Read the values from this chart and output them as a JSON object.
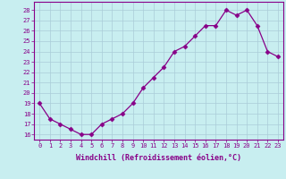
{
  "x": [
    0,
    1,
    2,
    3,
    4,
    5,
    6,
    7,
    8,
    9,
    10,
    11,
    12,
    13,
    14,
    15,
    16,
    17,
    18,
    19,
    20,
    21,
    22,
    23
  ],
  "y": [
    19.0,
    17.5,
    17.0,
    16.5,
    16.0,
    16.0,
    17.0,
    17.5,
    18.0,
    19.0,
    20.5,
    21.5,
    22.5,
    24.0,
    24.5,
    25.5,
    26.5,
    26.5,
    28.0,
    27.5,
    28.0,
    26.5,
    24.0,
    23.5
  ],
  "line_color": "#880088",
  "marker": "D",
  "marker_size": 2.5,
  "bg_color": "#c8eef0",
  "grid_color": "#aaccd8",
  "xlabel": "Windchill (Refroidissement éolien,°C)",
  "xlabel_color": "#880088",
  "ylabel_ticks": [
    16,
    17,
    18,
    19,
    20,
    21,
    22,
    23,
    24,
    25,
    26,
    27,
    28
  ],
  "xlim": [
    -0.5,
    23.5
  ],
  "ylim": [
    15.5,
    28.8
  ],
  "xtick_labels": [
    "0",
    "1",
    "2",
    "3",
    "4",
    "5",
    "6",
    "7",
    "8",
    "9",
    "10",
    "11",
    "12",
    "13",
    "14",
    "15",
    "16",
    "17",
    "18",
    "19",
    "20",
    "21",
    "22",
    "23"
  ],
  "tick_color": "#880088",
  "spine_color": "#880088",
  "tick_fontsize": 5.0,
  "xlabel_fontsize": 6.0,
  "linewidth": 0.9
}
